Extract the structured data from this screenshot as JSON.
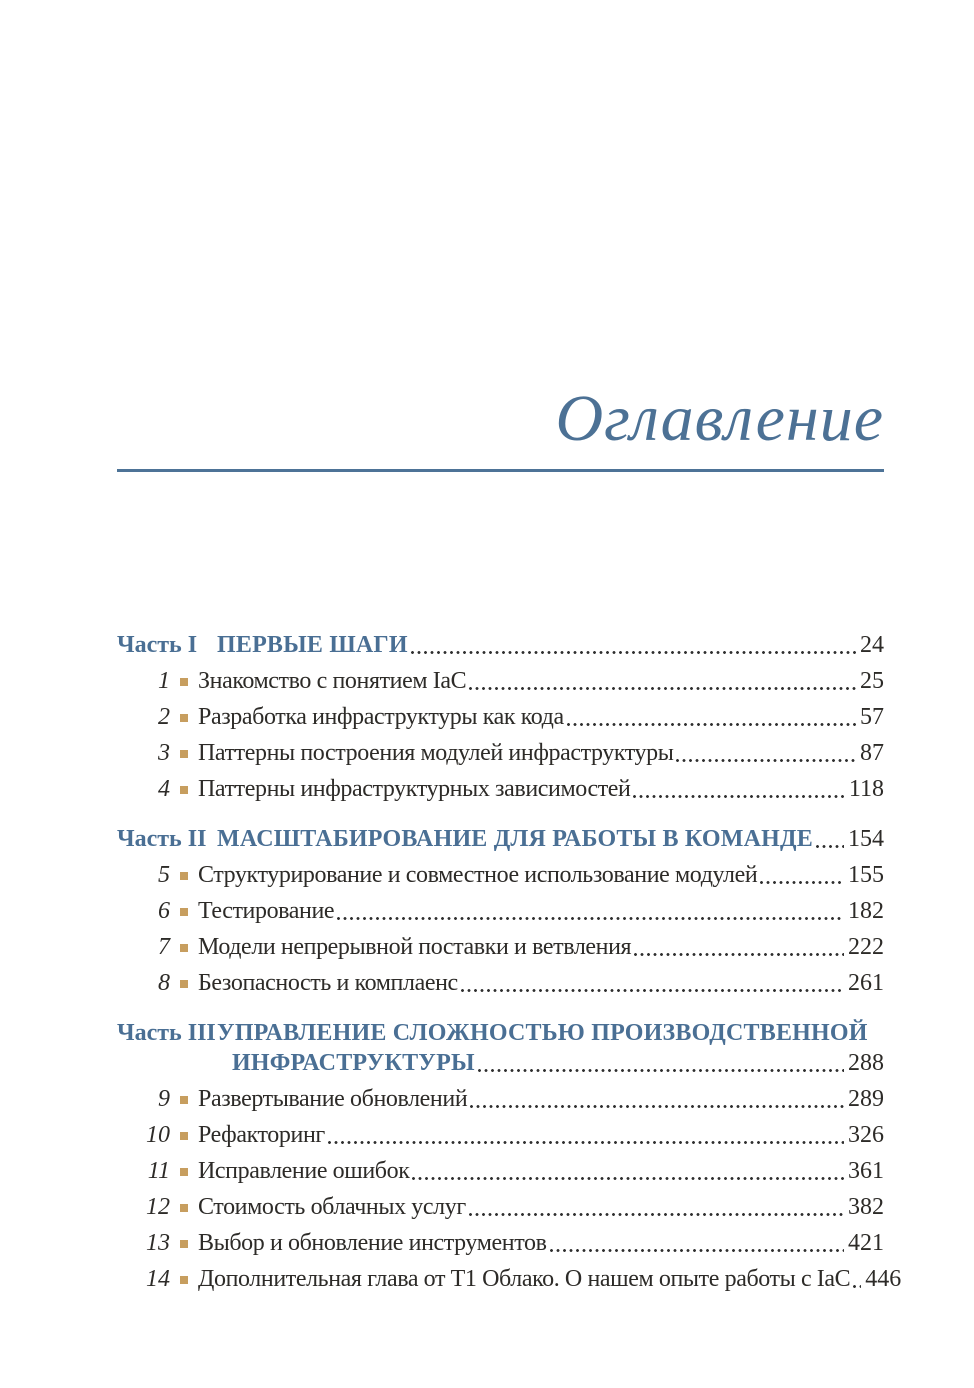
{
  "page": {
    "title": "Оглавление"
  },
  "colors": {
    "accent_blue": "#4C7195",
    "rule_blue": "#4D7397",
    "bullet_gold": "#C79E5F",
    "body_text": "#2D2B28"
  },
  "toc": {
    "parts": [
      {
        "label": "Часть I",
        "title": "ПЕРВЫЕ ШАГИ",
        "page": "24",
        "chapters": [
          {
            "num": "1",
            "title": "Знакомство с понятием IaC",
            "page": "25"
          },
          {
            "num": "2",
            "title": "Разработка инфраструктуры как кода",
            "page": "57"
          },
          {
            "num": "3",
            "title": "Паттерны построения модулей инфраструктуры",
            "page": "87"
          },
          {
            "num": "4",
            "title": "Паттерны инфраструктурных зависимостей",
            "page": "118"
          }
        ]
      },
      {
        "label": "Часть II",
        "title": "МАСШТАБИРОВАНИЕ ДЛЯ РАБОТЫ В КОМАНДЕ",
        "page": "154",
        "chapters": [
          {
            "num": "5",
            "title": "Структурирование и совместное использование модулей",
            "page": "155"
          },
          {
            "num": "6",
            "title": "Тестирование",
            "page": "182"
          },
          {
            "num": "7",
            "title": "Модели непрерывной поставки и ветвления",
            "page": "222"
          },
          {
            "num": "8",
            "title": "Безопасность и комплаенс",
            "page": "261"
          }
        ]
      },
      {
        "label": "Часть III",
        "title_line1": "УПРАВЛЕНИЕ СЛОЖНОСТЬЮ ПРОИЗВОДСТВЕННОЙ",
        "title_line2": "ИНФРАСТРУКТУРЫ",
        "page": "288",
        "chapters": [
          {
            "num": "9",
            "title": "Развертывание обновлений",
            "page": "289"
          },
          {
            "num": "10",
            "title": "Рефакторинг",
            "page": "326"
          },
          {
            "num": "11",
            "title": "Исправление ошибок",
            "page": "361"
          },
          {
            "num": "12",
            "title": "Стоимость облачных услуг",
            "page": "382"
          },
          {
            "num": "13",
            "title": "Выбор и обновление инструментов",
            "page": "421"
          },
          {
            "num": "14",
            "title": "Дополнительная глава от Т1 Облако. О нашем опыте работы с IaC",
            "page": "446"
          }
        ]
      }
    ]
  }
}
